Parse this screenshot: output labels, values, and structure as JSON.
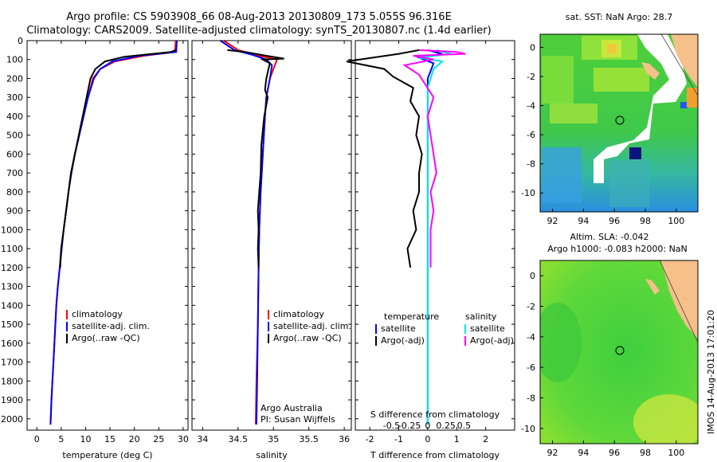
{
  "title_line1": "Argo profile: CS 5903908_66 08-Aug-2013 20130809_173 5.055S 96.316E",
  "title_line2": "Climatology: CARS2009. Satellite-adjusted climatology: synTS_20130807.nc (1.4d earlier)",
  "timestamp": "IMOS 14-Aug-2013 17:01:20",
  "colors": {
    "climatology": "#ff0000",
    "satellite": "#0000ff",
    "argo": "#000000",
    "sat_sal": "#00e5ee",
    "argo_sal": "#ff00ff",
    "land": "#f5c08a"
  },
  "chart_data": [
    {
      "type": "line",
      "id": "temperature",
      "xlabel": "temperature (deg C)",
      "xlim": [
        -2,
        31
      ],
      "ylim": [
        2060,
        0
      ],
      "x_ticks": [
        0,
        5,
        10,
        15,
        20,
        25,
        30
      ],
      "y_ticks": [
        0,
        100,
        200,
        300,
        400,
        500,
        600,
        700,
        800,
        900,
        1000,
        1100,
        1200,
        1300,
        1400,
        1500,
        1600,
        1700,
        1800,
        1900,
        2000
      ],
      "legend": [
        "climatology",
        "satellite-adj. clim.",
        "Argo(..raw -QC)"
      ],
      "series": [
        {
          "name": "climatology",
          "points": [
            [
              28.5,
              0
            ],
            [
              28.3,
              60
            ],
            [
              22,
              80
            ],
            [
              16,
              110
            ],
            [
              13,
              150
            ],
            [
              11.5,
              200
            ],
            [
              10.5,
              300
            ],
            [
              9.5,
              400
            ],
            [
              8.7,
              500
            ],
            [
              7.8,
              600
            ],
            [
              7,
              700
            ],
            [
              6.5,
              800
            ],
            [
              6,
              900
            ],
            [
              5.5,
              1000
            ],
            [
              5,
              1100
            ],
            [
              4.7,
              1200
            ],
            [
              4.3,
              1300
            ],
            [
              4,
              1400
            ],
            [
              3.8,
              1500
            ],
            [
              3.6,
              1600
            ],
            [
              3.4,
              1700
            ],
            [
              3.2,
              1800
            ],
            [
              3,
              1900
            ],
            [
              2.8,
              2030
            ]
          ]
        },
        {
          "name": "satellite-adj. clim.",
          "points": [
            [
              28.7,
              0
            ],
            [
              28.6,
              60
            ],
            [
              21,
              80
            ],
            [
              15.5,
              110
            ],
            [
              13,
              150
            ],
            [
              11.7,
              200
            ],
            [
              10.5,
              300
            ],
            [
              9.6,
              400
            ],
            [
              8.7,
              500
            ],
            [
              7.8,
              600
            ],
            [
              7.1,
              700
            ],
            [
              6.5,
              800
            ],
            [
              6,
              900
            ],
            [
              5.5,
              1000
            ],
            [
              5.1,
              1100
            ],
            [
              4.7,
              1200
            ],
            [
              4.3,
              1300
            ],
            [
              4,
              1400
            ],
            [
              3.8,
              1500
            ],
            [
              3.6,
              1600
            ],
            [
              3.4,
              1700
            ],
            [
              3.2,
              1800
            ],
            [
              3,
              1900
            ],
            [
              2.8,
              2030
            ]
          ]
        },
        {
          "name": "Argo(..raw -QC)",
          "points": [
            [
              28.5,
              50
            ],
            [
              27.5,
              60
            ],
            [
              18,
              85
            ],
            [
              14,
              110
            ],
            [
              12,
              150
            ],
            [
              11,
              200
            ],
            [
              10.2,
              300
            ],
            [
              9.4,
              400
            ],
            [
              8.6,
              500
            ],
            [
              7.8,
              600
            ],
            [
              7,
              700
            ],
            [
              6.5,
              800
            ],
            [
              6,
              900
            ],
            [
              5.5,
              1000
            ],
            [
              5,
              1100
            ],
            [
              4.8,
              1200
            ]
          ]
        }
      ]
    },
    {
      "type": "line",
      "id": "salinity",
      "xlabel": "salinity",
      "xlim": [
        33.85,
        36.1
      ],
      "ylim": [
        2060,
        0
      ],
      "x_ticks": [
        34,
        34.5,
        35,
        35.5,
        36
      ],
      "legend": [
        "climatology",
        "satellite-adj. clim.",
        "Argo(..raw -QC)"
      ],
      "annotation": [
        "Argo Australia",
        "PI: Susan Wijffels"
      ],
      "series": [
        {
          "name": "climatology",
          "points": [
            [
              34.3,
              0
            ],
            [
              34.5,
              50
            ],
            [
              34.8,
              80
            ],
            [
              35.05,
              100
            ],
            [
              35.0,
              150
            ],
            [
              34.95,
              200
            ],
            [
              34.9,
              300
            ],
            [
              34.88,
              400
            ],
            [
              34.85,
              600
            ],
            [
              34.82,
              800
            ],
            [
              34.8,
              1000
            ],
            [
              34.79,
              1200
            ],
            [
              34.78,
              1500
            ],
            [
              34.76,
              1800
            ],
            [
              34.75,
              2030
            ]
          ]
        },
        {
          "name": "satellite-adj. clim.",
          "points": [
            [
              34.25,
              0
            ],
            [
              34.45,
              50
            ],
            [
              34.7,
              75
            ],
            [
              34.9,
              100
            ],
            [
              34.98,
              130
            ],
            [
              34.95,
              200
            ],
            [
              34.9,
              300
            ],
            [
              34.88,
              400
            ],
            [
              34.85,
              600
            ],
            [
              34.82,
              800
            ],
            [
              34.8,
              1000
            ],
            [
              34.79,
              1200
            ],
            [
              34.78,
              1500
            ],
            [
              34.77,
              1800
            ],
            [
              34.76,
              2030
            ]
          ]
        },
        {
          "name": "Argo(..raw -QC)",
          "points": [
            [
              34.35,
              50
            ],
            [
              34.6,
              60
            ],
            [
              34.9,
              80
            ],
            [
              35.15,
              95
            ],
            [
              34.85,
              100
            ],
            [
              34.95,
              120
            ],
            [
              34.93,
              150
            ],
            [
              34.9,
              200
            ],
            [
              34.88,
              260
            ],
            [
              34.92,
              300
            ],
            [
              34.87,
              400
            ],
            [
              34.83,
              550
            ],
            [
              34.82,
              700
            ],
            [
              34.8,
              800
            ],
            [
              34.78,
              900
            ],
            [
              34.79,
              1000
            ],
            [
              34.78,
              1100
            ],
            [
              34.79,
              1200
            ]
          ]
        }
      ]
    },
    {
      "type": "line",
      "id": "difference",
      "xlabel": "T difference from climatology",
      "x2label": "S difference from climatology",
      "xlim": [
        -2.5,
        3
      ],
      "ylim": [
        2060,
        0
      ],
      "x_ticks": [
        -2,
        -1,
        0,
        1,
        2
      ],
      "x_tick_labels": [
        "-2",
        "-1",
        "0",
        "1",
        "2"
      ],
      "x2_ticks": [
        -1.25,
        -0.625,
        0,
        0.625,
        1.25
      ],
      "x2_tick_labels": [
        "-0.5",
        "-0.25",
        "0",
        "0.25",
        "0.5"
      ],
      "legend": [
        {
          "group": "temperature",
          "entries": [
            "satellite",
            "Argo(-adj)"
          ]
        },
        {
          "group": "salinity",
          "entries": [
            "satellite",
            "Argo(-adj)"
          ]
        }
      ],
      "series": [
        {
          "name": "temperature satellite",
          "points": [
            [
              0,
              50
            ],
            [
              0.5,
              70
            ],
            [
              -0.3,
              90
            ],
            [
              0.2,
              120
            ],
            [
              0,
              200
            ],
            [
              0,
              600
            ],
            [
              0,
              1200
            ],
            [
              0,
              2030
            ]
          ]
        },
        {
          "name": "temperature Argo(-adj)",
          "points": [
            [
              -0.3,
              50
            ],
            [
              -1,
              70
            ],
            [
              -2.8,
              110
            ],
            [
              -1.5,
              150
            ],
            [
              -1.2,
              190
            ],
            [
              -0.5,
              250
            ],
            [
              -0.6,
              320
            ],
            [
              -0.3,
              400
            ],
            [
              -0.4,
              500
            ],
            [
              -0.2,
              600
            ],
            [
              -0.3,
              700
            ],
            [
              -0.3,
              800
            ],
            [
              -0.5,
              900
            ],
            [
              -0.4,
              1000
            ],
            [
              -0.7,
              1100
            ],
            [
              -0.6,
              1200
            ]
          ]
        },
        {
          "name": "salinity satellite",
          "points": [
            [
              0.3,
              50
            ],
            [
              0.8,
              70
            ],
            [
              -0.3,
              90
            ],
            [
              0.5,
              110
            ],
            [
              0.2,
              150
            ],
            [
              0,
              250
            ],
            [
              0,
              400
            ],
            [
              0,
              700
            ],
            [
              0,
              1200
            ],
            [
              0,
              2030
            ]
          ]
        },
        {
          "name": "salinity Argo(-adj)",
          "points": [
            [
              -0.3,
              50
            ],
            [
              1,
              60
            ],
            [
              1.3,
              70
            ],
            [
              -0.5,
              80
            ],
            [
              0.2,
              100
            ],
            [
              -0.8,
              130
            ],
            [
              -0.3,
              180
            ],
            [
              0.2,
              300
            ],
            [
              0,
              400
            ],
            [
              0.2,
              600
            ],
            [
              0.3,
              700
            ],
            [
              0.1,
              800
            ],
            [
              0.2,
              900
            ],
            [
              0.1,
              1000
            ],
            [
              0.1,
              1200
            ]
          ]
        }
      ]
    },
    {
      "type": "heatmap",
      "id": "sst-map",
      "title": "sat. SST: NaN Argo: 28.7",
      "xlim": [
        91.2,
        101.4
      ],
      "ylim": [
        -11.3,
        0.9
      ],
      "x_ticks": [
        92,
        94,
        96,
        98,
        100
      ],
      "y_ticks": [
        0,
        -2,
        -4,
        -6,
        -8,
        -10
      ],
      "argo_position": [
        96.316,
        -5.055
      ]
    },
    {
      "type": "heatmap",
      "id": "sla-map",
      "title_line1": "Altim. SLA: -0.042",
      "title_line2": "Argo h1000: -0.083 h2000: NaN",
      "xlim": [
        91.2,
        101.4
      ],
      "ylim": [
        -11.0,
        1.0
      ],
      "x_ticks": [
        92,
        94,
        96,
        98,
        100
      ],
      "y_ticks": [
        0,
        -2,
        -4,
        -6,
        -8,
        -10
      ],
      "argo_position": [
        96.316,
        -5.055
      ]
    }
  ]
}
